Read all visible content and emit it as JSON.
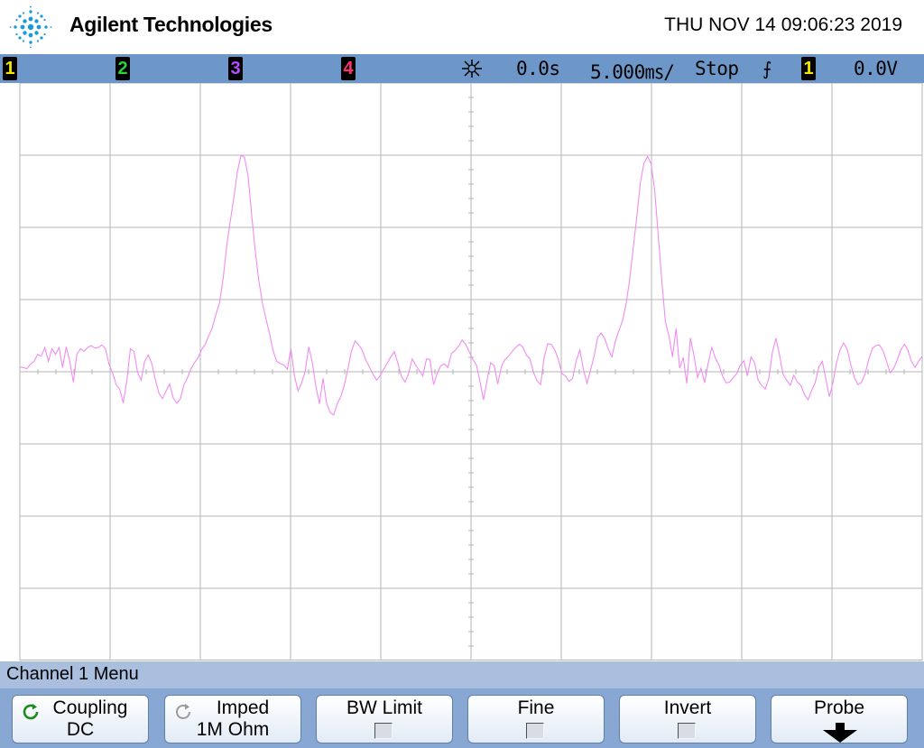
{
  "header": {
    "brand": "Agilent Technologies",
    "datetime": "THU NOV 14 09:06:23 2019"
  },
  "status_bar": {
    "channels": [
      {
        "label": "1",
        "color": "#f2e600"
      },
      {
        "label": "2",
        "color": "#28d23c"
      },
      {
        "label": "3",
        "color": "#b34dff"
      },
      {
        "label": "4",
        "color": "#ff2f6d"
      }
    ],
    "run_icon": "run-control-icon",
    "delay": "0.0s",
    "timebase": "5.000㎳/",
    "run_state": "Stop",
    "trigger_edge_icon": "rising-edge-icon",
    "trigger_source": "1",
    "trigger_level": "0.0V"
  },
  "waveform": {
    "channel": "1",
    "color": "#f08cf0",
    "samples": [
      5.3,
      4.6,
      3.5,
      8.4,
      11.6,
      19.2,
      17.2,
      26.9,
      11.6,
      25.5,
      19.2,
      26.9,
      4.6,
      27.6,
      11.6,
      -11.6,
      19.2,
      25.5,
      22.7,
      26.9,
      29,
      26.2,
      26.9,
      29.7,
      25.5,
      8.4,
      -1.1,
      -14.3,
      -19.2,
      -34.8,
      -9.4,
      25.5,
      22.7,
      -0.4,
      -9.4,
      11.6,
      18.6,
      9.1,
      -8.7,
      -24.1,
      -29.7,
      -21.3,
      -13.6,
      -29,
      -34.8,
      -30.4,
      -14.3,
      -6.6,
      3.5,
      10.2,
      15.8,
      24.8,
      30.4,
      40.1,
      49.2,
      63.8,
      76.3,
      103.4,
      138.9,
      166.8,
      193.3,
      221.8,
      239.9,
      237.8,
      216.3,
      173.8,
      133.4,
      101.3,
      76.3,
      58.9,
      42.2,
      23.4,
      11.6,
      9.1,
      7.7,
      2.8,
      25.5,
      -4.6,
      -21.3,
      -12.2,
      0.4,
      27.6,
      10.2,
      -16.4,
      -35.5,
      -7.3,
      -34.8,
      -45.2,
      -48,
      -35.5,
      -27.6,
      -14.3,
      3.5,
      23.4,
      34.1,
      29.7,
      24.1,
      12.9,
      5.3,
      -2.5,
      -9.4,
      -4.6,
      2.8,
      9.4,
      16.4,
      22.3,
      9.1,
      -5.3,
      -11.6,
      -2.1,
      14.3,
      7.3,
      1.5,
      -4.6,
      14.3,
      13.6,
      -14.3,
      -2.1,
      6.6,
      8.7,
      4.6,
      20.2,
      23.4,
      28.3,
      35.2,
      30.4,
      22.3,
      13.6,
      7.7,
      -10.8,
      -31.1,
      -9.4,
      10.1,
      6.6,
      -13.6,
      5.3,
      13.6,
      17.2,
      22.3,
      26.9,
      30.4,
      27.6,
      18.6,
      14.3,
      -0.4,
      -10.1,
      -14.3,
      15.8,
      31.1,
      30.4,
      24.1,
      13.6,
      -2.1,
      -4.6,
      -10.8,
      -7.3,
      12.2,
      24.1,
      2.8,
      -12.9,
      1.5,
      17.2,
      38,
      42.9,
      36.6,
      24.8,
      16.4,
      34.1,
      45.9,
      56.8,
      75.6,
      102.7,
      137.5,
      172.5,
      209.6,
      231.5,
      238.5,
      230.2,
      200.9,
      150.9,
      100.2,
      55.4,
      39.4,
      16.4,
      48,
      3.9,
      15.8,
      -12.9,
      37.3,
      18.6,
      -6.6,
      3.9,
      -12.2,
      9.4,
      26.9,
      15.1,
      7.7,
      -4.6,
      -12.2,
      -11.6,
      -6.6,
      -2.1,
      7.3,
      12.2,
      -4.6,
      16.4,
      10.2,
      -9.4,
      -15.1,
      -19.2,
      -7.3,
      21.6,
      37.3,
      18.6,
      -2.8,
      -9.4,
      -15.1,
      -3.9,
      -11.6,
      -15.1,
      -25.5,
      -31.1,
      -20.9,
      -12.2,
      5.3,
      11.6,
      -8.7,
      -27.6,
      -11.6,
      10.1,
      24.8,
      31.8,
      24.8,
      7.7,
      -6.6,
      -14.3,
      -11.6,
      -2.1,
      13.6,
      25.5,
      29,
      29.7,
      23.4,
      11.6,
      -1.1,
      3.5,
      12.9,
      24.1,
      30.4,
      24.1,
      11.6,
      4.6,
      11.6,
      17.2
    ]
  },
  "menu": {
    "title": "Channel 1  Menu",
    "softkeys": [
      {
        "line1": "Coupling",
        "line2": "DC",
        "icon": "cycle-icon"
      },
      {
        "line1": "Imped",
        "line2": "1M Ohm",
        "icon": "cycle-icon"
      },
      {
        "line1": "BW Limit",
        "icon": "checkbox-icon"
      },
      {
        "line1": "Fine",
        "icon": "checkbox-icon"
      },
      {
        "line1": "Invert",
        "icon": "checkbox-icon"
      },
      {
        "line1": "Probe",
        "icon": "down-arrow-icon"
      }
    ]
  }
}
